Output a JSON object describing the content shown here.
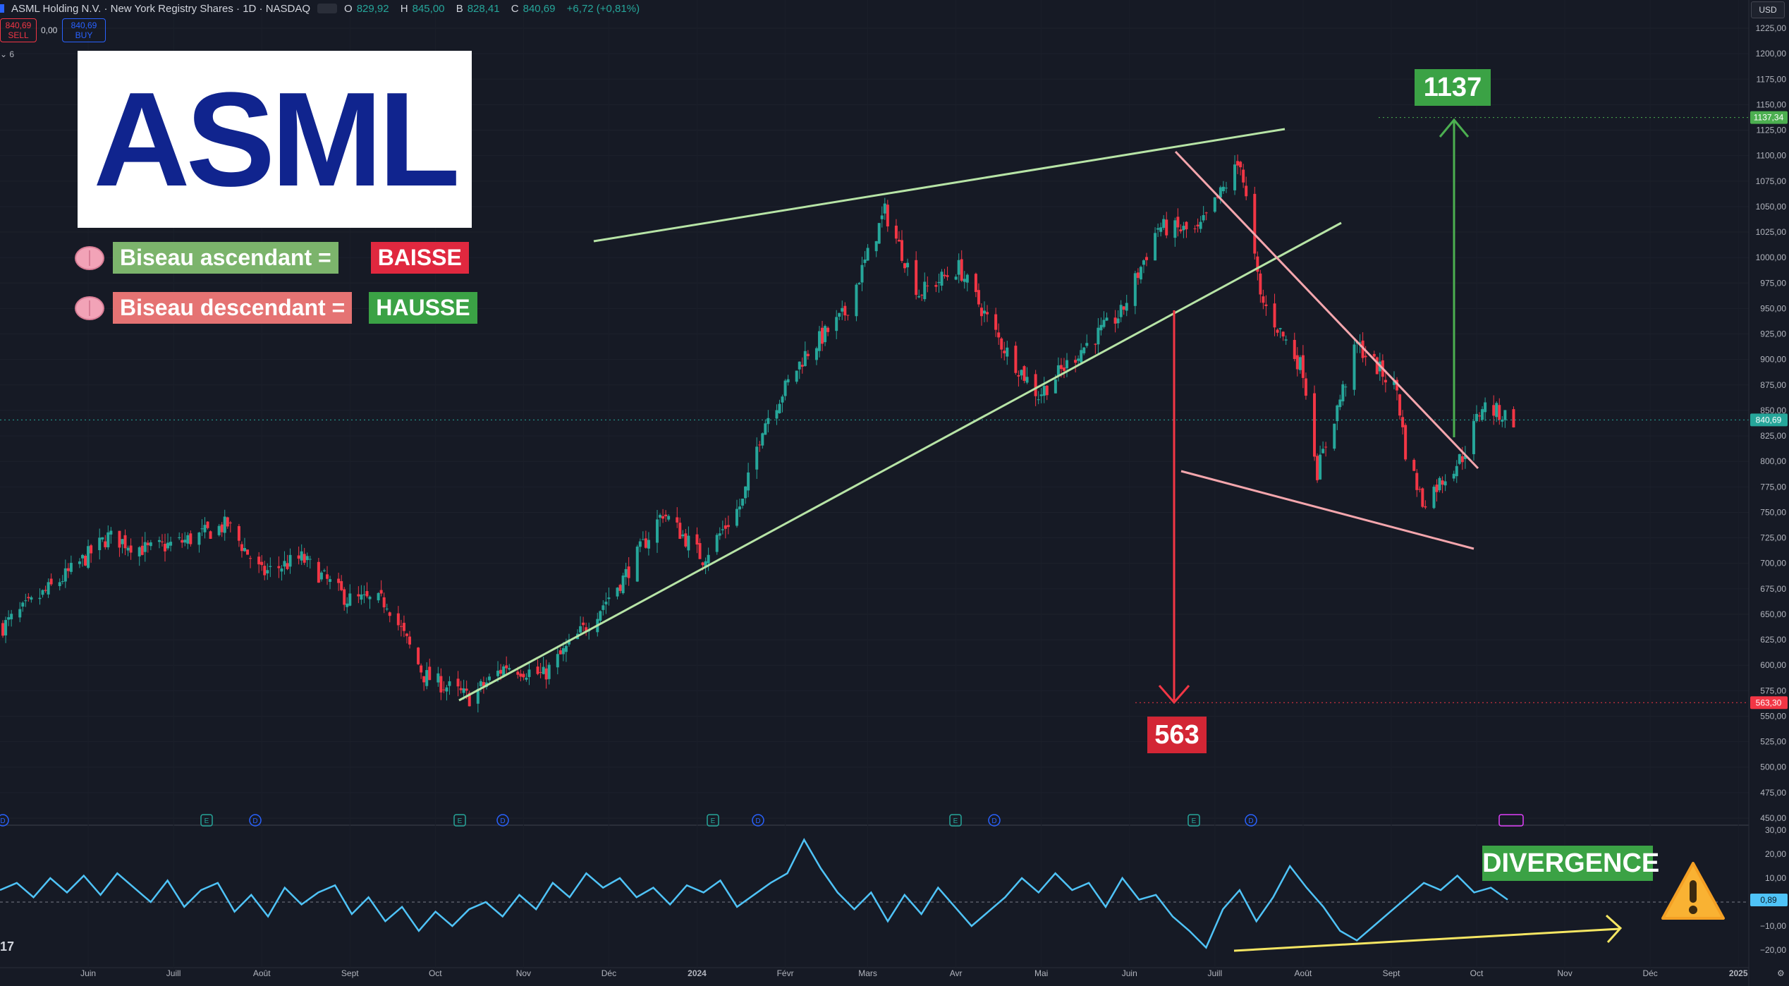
{
  "header": {
    "title": "ASML Holding N.V. · New York Registry Shares · 1D · NASDAQ",
    "open_label": "O",
    "open": "829,92",
    "high_label": "H",
    "high": "845,00",
    "low_label": "B",
    "low": "828,41",
    "close_label": "C",
    "close": "840,69",
    "change": "+6,72 (+0,81%)"
  },
  "trade": {
    "sell_price": "840,69",
    "sell_label": "SELL",
    "spread": "0,00",
    "buy_price": "840,69",
    "buy_label": "BUY",
    "indicators_count": "6"
  },
  "currency": "USD",
  "logo_text": "ASML",
  "legend": {
    "rising_wedge_label": "Biseau ascendant =",
    "rising_wedge_result": "BAISSE",
    "falling_wedge_label": "Biseau descendant =",
    "falling_wedge_result": "HAUSSE"
  },
  "targets": {
    "upside": "1137",
    "downside": "563"
  },
  "indicator_annotation": "DIVERGENCE",
  "indicator_corner_label": "17",
  "colors": {
    "background": "#161a25",
    "bull": "#26a69a",
    "bear": "#f23645",
    "rising_wedge": "#b7e4a6",
    "falling_wedge": "#f4a6ad",
    "target_up": "#4caf50",
    "target_down": "#f23645",
    "oscillator": "#4fc3f7",
    "divergence": "#f5e663"
  },
  "chart_data": [
    {
      "type": "candlestick",
      "title": "ASML Holding N.V. · New York Registry Shares · 1D · NASDAQ",
      "x_tick_labels": [
        "Juin",
        "Juill",
        "Août",
        "Sept",
        "Oct",
        "Nov",
        "Déc",
        "2024",
        "Févr",
        "Mars",
        "Avr",
        "Mai",
        "Juin",
        "Juill",
        "Août",
        "Sept",
        "Oct",
        "Nov",
        "Déc",
        "2025"
      ],
      "y_tick_labels": [
        "1225,00",
        "1200,00",
        "1175,00",
        "1150,00",
        "1125,00",
        "1100,00",
        "1075,00",
        "1050,00",
        "1025,00",
        "1000,00",
        "975,00",
        "950,00",
        "925,00",
        "900,00",
        "875,00",
        "850,00",
        "825,00",
        "800,00",
        "775,00",
        "750,00",
        "725,00",
        "700,00",
        "675,00",
        "650,00",
        "625,00",
        "600,00",
        "575,00",
        "550,00",
        "525,00",
        "500,00",
        "475,00",
        "450,00"
      ],
      "ylim": [
        450,
        1230
      ],
      "price_markers": [
        {
          "label": "1137,34",
          "value": 1137.34,
          "color": "#4caf50"
        },
        {
          "label": "840,69",
          "value": 840.69,
          "color": "#26a69a"
        },
        {
          "label": "563,30",
          "value": 563.3,
          "color": "#f23645"
        }
      ],
      "close_path": [
        {
          "date": "2023-05-02",
          "close": 638
        },
        {
          "date": "2023-05-25",
          "close": 690
        },
        {
          "date": "2023-06-08",
          "close": 726
        },
        {
          "date": "2023-06-22",
          "close": 713
        },
        {
          "date": "2023-07-05",
          "close": 722
        },
        {
          "date": "2023-07-20",
          "close": 738
        },
        {
          "date": "2023-08-01",
          "close": 690
        },
        {
          "date": "2023-08-15",
          "close": 705
        },
        {
          "date": "2023-08-31",
          "close": 665
        },
        {
          "date": "2023-09-14",
          "close": 662
        },
        {
          "date": "2023-09-27",
          "close": 590
        },
        {
          "date": "2023-10-13",
          "close": 568
        },
        {
          "date": "2023-10-26",
          "close": 600
        },
        {
          "date": "2023-11-08",
          "close": 590
        },
        {
          "date": "2023-11-22",
          "close": 635
        },
        {
          "date": "2023-12-06",
          "close": 685
        },
        {
          "date": "2023-12-20",
          "close": 750
        },
        {
          "date": "2024-01-03",
          "close": 705
        },
        {
          "date": "2024-01-17",
          "close": 760
        },
        {
          "date": "2024-01-24",
          "close": 835
        },
        {
          "date": "2024-02-08",
          "close": 905
        },
        {
          "date": "2024-02-22",
          "close": 945
        },
        {
          "date": "2024-03-07",
          "close": 1045
        },
        {
          "date": "2024-03-19",
          "close": 965
        },
        {
          "date": "2024-04-02",
          "close": 990
        },
        {
          "date": "2024-04-17",
          "close": 915
        },
        {
          "date": "2024-04-30",
          "close": 865
        },
        {
          "date": "2024-05-15",
          "close": 910
        },
        {
          "date": "2024-05-29",
          "close": 945
        },
        {
          "date": "2024-06-11",
          "close": 1030
        },
        {
          "date": "2024-06-25",
          "close": 1025
        },
        {
          "date": "2024-07-10",
          "close": 1095
        },
        {
          "date": "2024-07-17",
          "close": 960
        },
        {
          "date": "2024-08-01",
          "close": 890
        },
        {
          "date": "2024-08-06",
          "close": 790
        },
        {
          "date": "2024-08-20",
          "close": 915
        },
        {
          "date": "2024-09-03",
          "close": 870
        },
        {
          "date": "2024-09-06",
          "close": 810
        },
        {
          "date": "2024-09-12",
          "close": 760
        },
        {
          "date": "2024-09-26",
          "close": 805
        },
        {
          "date": "2024-10-03",
          "close": 855
        },
        {
          "date": "2024-10-14",
          "close": 841
        }
      ]
    },
    {
      "type": "line",
      "x_tick_labels": [
        "Juin",
        "Juill",
        "Août",
        "Sept",
        "Oct",
        "Nov",
        "Déc",
        "2024",
        "Févr",
        "Mars",
        "Avr",
        "Mai",
        "Juin",
        "Juill",
        "Août",
        "Sept",
        "Oct",
        "Nov",
        "Déc",
        "2025"
      ],
      "y_tick_labels": [
        "30,00",
        "20,00",
        "10,00",
        "0,00",
        "−10,00",
        "−20,00"
      ],
      "ylim": [
        -22,
        30
      ],
      "last_value_label": "0,89",
      "series": [
        {
          "values": [
            5,
            8,
            2,
            10,
            4,
            11,
            3,
            12,
            6,
            0,
            9,
            -2,
            5,
            8,
            -4,
            3,
            -6,
            6,
            -1,
            4,
            7,
            -5,
            2,
            -8,
            -2,
            -12,
            -4,
            -10,
            -3,
            0,
            -6,
            3,
            -3,
            8,
            2,
            12,
            6,
            10,
            2,
            6,
            -1,
            7,
            4,
            9,
            -2,
            3,
            8,
            12,
            26,
            14,
            4,
            -3,
            4,
            -8,
            3,
            -5,
            6,
            -2,
            -10,
            -4,
            2,
            10,
            4,
            12,
            5,
            8,
            -2,
            10,
            1,
            3,
            -6,
            -12,
            -19,
            -3,
            5,
            -8,
            2,
            15,
            6,
            -2,
            -12,
            -16,
            -10,
            -4,
            2,
            8,
            5,
            11,
            4,
            6,
            1
          ]
        }
      ]
    }
  ]
}
